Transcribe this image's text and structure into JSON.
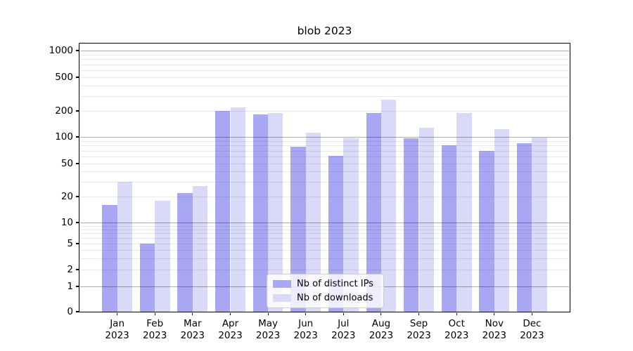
{
  "title": "blob 2023",
  "chart_data": {
    "type": "bar",
    "title": "blob 2023",
    "x_categories": [
      "Jan",
      "Feb",
      "Mar",
      "Apr",
      "May",
      "Jun",
      "Jul",
      "Aug",
      "Sep",
      "Oct",
      "Nov",
      "Dec"
    ],
    "x_year_suffix": "2023",
    "series": [
      {
        "name": "Nb of distinct IPs",
        "color": "#a7a7f4",
        "values": [
          16,
          5,
          22,
          202,
          182,
          78,
          61,
          190,
          97,
          80,
          70,
          85
        ]
      },
      {
        "name": "Nb of downloads",
        "color": "#d9d9f8",
        "values": [
          30,
          18,
          27,
          219,
          190,
          111,
          96,
          270,
          128,
          188,
          124,
          98
        ]
      }
    ],
    "yscale": "symlog",
    "ytick_values": [
      0,
      1,
      2,
      5,
      10,
      20,
      50,
      100,
      200,
      500,
      1000
    ],
    "ytick_labels": [
      "0",
      "1",
      "2",
      "5",
      "10",
      "20",
      "50",
      "100",
      "200",
      "500",
      "1000"
    ],
    "y_major_gridlines": [
      1,
      10,
      100,
      1000
    ],
    "y_minor_gridlines": [
      2,
      3,
      4,
      5,
      6,
      7,
      8,
      9,
      20,
      30,
      40,
      50,
      60,
      70,
      80,
      90,
      200,
      300,
      400,
      500,
      600,
      700,
      800,
      900
    ],
    "ylim": [
      0,
      1300
    ],
    "xlabel": "",
    "ylabel": "",
    "grid": true,
    "legend": {
      "position": "lower center",
      "entries": [
        "Nb of distinct IPs",
        "Nb of downloads"
      ]
    }
  },
  "colors": {
    "bar_distinct_ips": "#a7a7f4",
    "bar_downloads": "#d9d9f8",
    "major_grid": "rgba(0,0,0,0.32)",
    "minor_grid": "rgba(0,0,0,0.085)",
    "axis": "#000000",
    "legend_border": "#cccccc",
    "legend_background": "rgba(255,255,255,0.8)",
    "background": "#ffffff"
  }
}
